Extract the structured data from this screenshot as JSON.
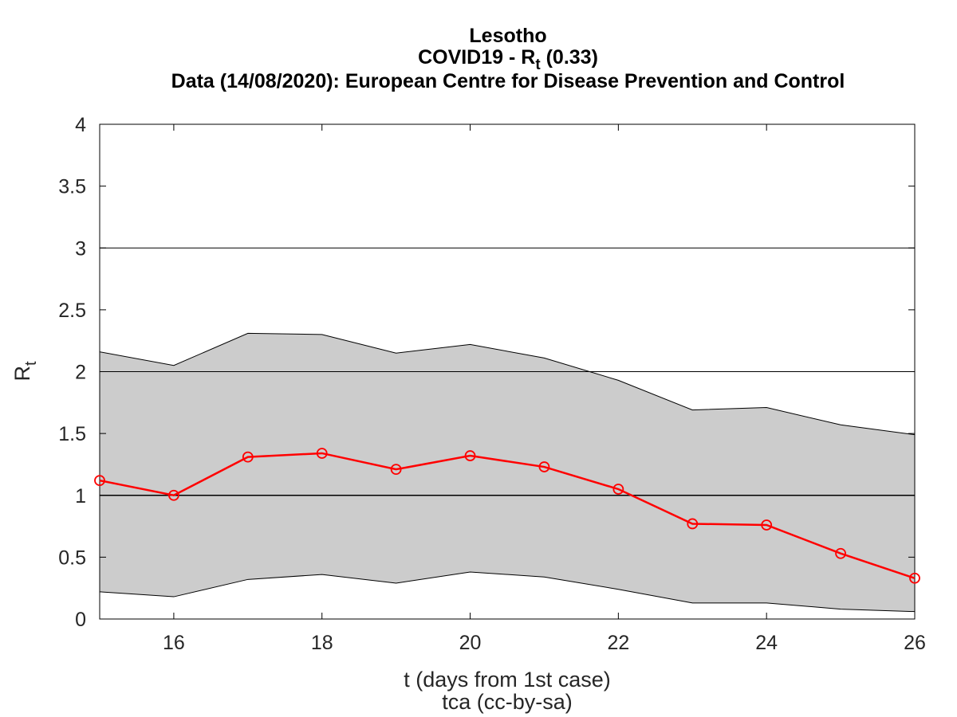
{
  "chart_data": {
    "type": "line",
    "title": {
      "line1": "Lesotho",
      "line2_prefix": "COVID19 - R",
      "line2_sub": "t",
      "line2_suffix": " (0.33)",
      "line3": "Data (14/08/2020): European Centre for Disease Prevention and Control"
    },
    "xlabel": "t (days from 1st case)",
    "ylabel": "R",
    "ylabel_sub": "t",
    "credit": "tca (cc-by-sa)",
    "xlim": [
      15,
      26
    ],
    "ylim": [
      0,
      4
    ],
    "xticks": [
      16,
      18,
      20,
      22,
      24,
      26
    ],
    "yticks": [
      0,
      0.5,
      1,
      1.5,
      2,
      2.5,
      3,
      3.5,
      4
    ],
    "ytick_labels": [
      "0",
      "0.5",
      "1",
      "1.5",
      "2",
      "2.5",
      "3",
      "3.5",
      "4"
    ],
    "reference_lines": [
      1,
      2,
      3
    ],
    "x": [
      15,
      16,
      17,
      18,
      19,
      20,
      21,
      22,
      23,
      24,
      25,
      26
    ],
    "rt": [
      1.12,
      1.0,
      1.31,
      1.34,
      1.21,
      1.32,
      1.23,
      1.05,
      0.77,
      0.76,
      0.53,
      0.33
    ],
    "upper": [
      2.16,
      2.05,
      2.31,
      2.3,
      2.15,
      2.22,
      2.11,
      1.93,
      1.69,
      1.71,
      1.57,
      1.49
    ],
    "lower": [
      0.22,
      0.18,
      0.32,
      0.36,
      0.29,
      0.38,
      0.34,
      0.24,
      0.13,
      0.13,
      0.08,
      0.06
    ],
    "colors": {
      "line": "#ff0000",
      "band": "#cccccc",
      "reference": "#000000"
    },
    "grid": false
  }
}
